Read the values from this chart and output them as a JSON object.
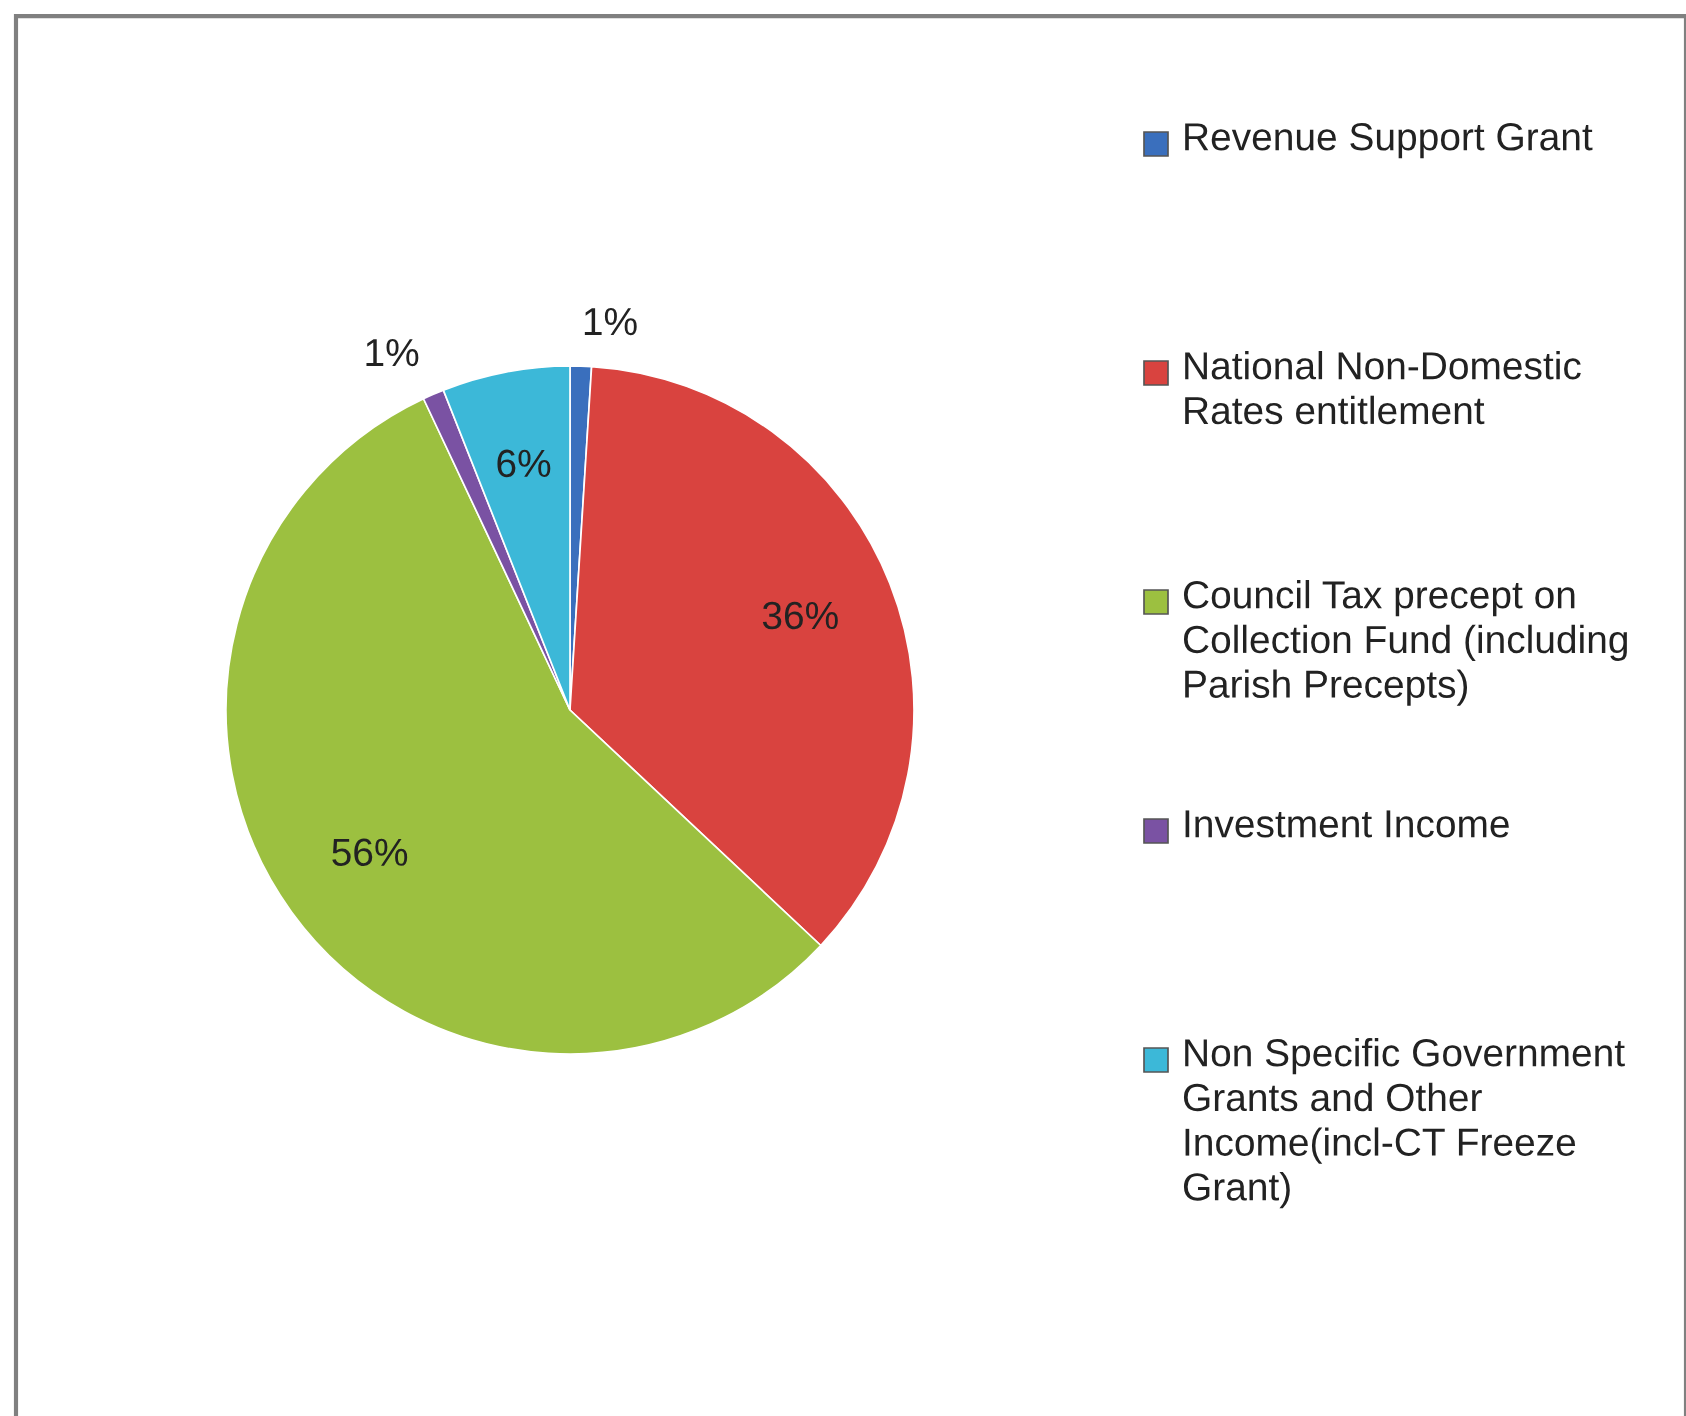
{
  "chart_data": {
    "type": "pie",
    "categories": [
      "Revenue Support Grant",
      "National Non-Domestic Rates entitlement",
      "Council Tax precept on Collection Fund (including Parish Precepts)",
      "Investment Income",
      "Non Specific Government Grants and Other Income(incl-CT Freeze Grant)"
    ],
    "values": [
      1,
      36,
      56,
      1,
      6
    ],
    "value_labels": [
      "1%",
      "36%",
      "56%",
      "1%",
      "6%"
    ],
    "colors": [
      "#3a6fbd",
      "#d9433f",
      "#9cc040",
      "#7a52a3",
      "#3cb8d8"
    ],
    "legend": "right"
  }
}
